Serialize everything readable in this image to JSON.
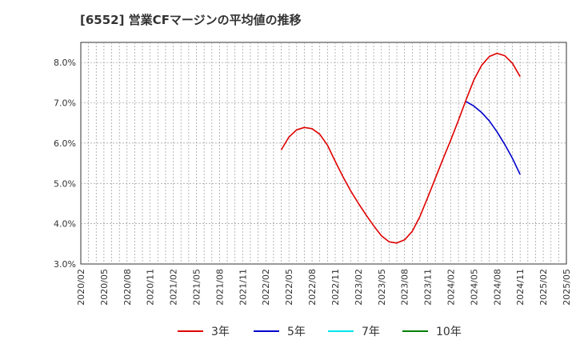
{
  "chart_data": {
    "type": "line",
    "title": "[6552]  営業CFマージンの平均値の推移",
    "xlabel": "",
    "ylabel": "",
    "ylim": [
      3.0,
      8.5
    ],
    "y_ticks": [
      "3.0%",
      "4.0%",
      "5.0%",
      "6.0%",
      "7.0%",
      "8.0%"
    ],
    "x_ticks": [
      "2020/02",
      "2020/05",
      "2020/08",
      "2020/11",
      "2021/02",
      "2021/05",
      "2021/08",
      "2021/11",
      "2022/02",
      "2022/05",
      "2022/08",
      "2022/11",
      "2023/02",
      "2023/05",
      "2023/08",
      "2023/11",
      "2024/02",
      "2024/05",
      "2024/08",
      "2024/11",
      "2025/02",
      "2025/05"
    ],
    "grid": true,
    "legend_position": "bottom",
    "series": [
      {
        "name": "3年",
        "color": "#e00000",
        "x": [
          "2022/04",
          "2022/05",
          "2022/06",
          "2022/07",
          "2022/08",
          "2022/09",
          "2022/10",
          "2022/11",
          "2022/12",
          "2023/01",
          "2023/02",
          "2023/03",
          "2023/04",
          "2023/05",
          "2023/06",
          "2023/07",
          "2023/08",
          "2023/09",
          "2023/10",
          "2023/11",
          "2023/12",
          "2024/01",
          "2024/02",
          "2024/03",
          "2024/04",
          "2024/05",
          "2024/06",
          "2024/07",
          "2024/08",
          "2024/09",
          "2024/10",
          "2024/11"
        ],
        "values": [
          5.83,
          6.15,
          6.33,
          6.39,
          6.36,
          6.22,
          5.95,
          5.55,
          5.17,
          4.82,
          4.51,
          4.22,
          3.95,
          3.7,
          3.55,
          3.52,
          3.6,
          3.81,
          4.18,
          4.65,
          5.13,
          5.61,
          6.08,
          6.57,
          7.08,
          7.57,
          7.93,
          8.15,
          8.23,
          8.17,
          7.98,
          7.65
        ]
      },
      {
        "name": "5年",
        "color": "#0000cc",
        "x": [
          "2024/04",
          "2024/05",
          "2024/06",
          "2024/07",
          "2024/08",
          "2024/09",
          "2024/10",
          "2024/11"
        ],
        "values": [
          7.03,
          6.92,
          6.76,
          6.55,
          6.28,
          5.97,
          5.62,
          5.22
        ]
      },
      {
        "name": "7年",
        "color": "#00e5ee",
        "x": [],
        "values": []
      },
      {
        "name": "10年",
        "color": "#007f00",
        "x": [],
        "values": []
      }
    ]
  }
}
